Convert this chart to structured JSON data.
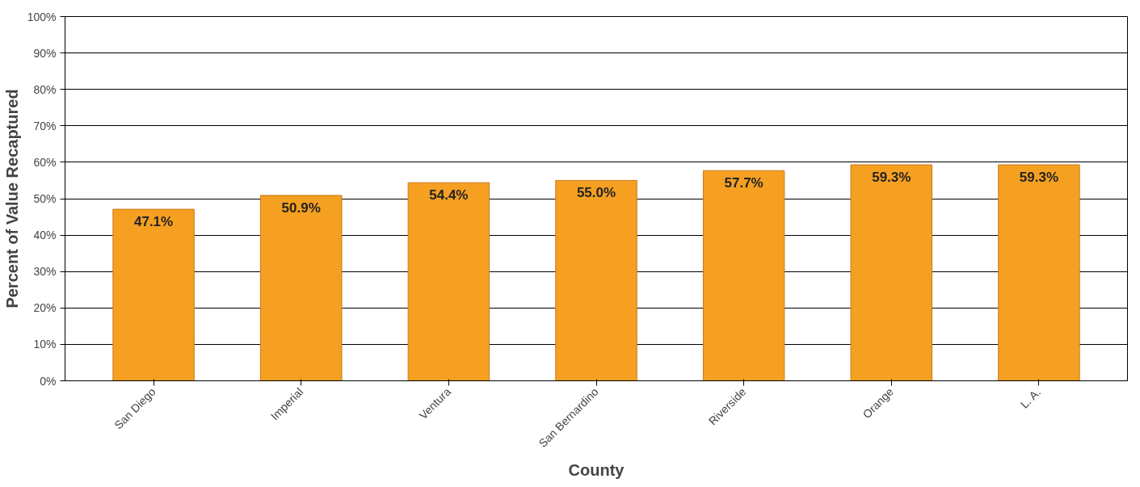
{
  "chart_data": {
    "type": "bar",
    "xlabel": "County",
    "ylabel": "Percent of Value Recaptured",
    "categories": [
      "San Diego",
      "Imperial",
      "Ventura",
      "San Bernardino",
      "Riverside",
      "Orange",
      "L. A."
    ],
    "values": [
      47.1,
      50.9,
      54.4,
      55.0,
      57.7,
      59.3,
      59.3
    ],
    "value_labels": [
      "47.1%",
      "50.9%",
      "54.4%",
      "55.0%",
      "57.7%",
      "59.3%",
      "59.3%"
    ],
    "color": "#f5a021",
    "ylim": [
      0,
      100
    ],
    "yticks": [
      {
        "value": 0,
        "label": "0%"
      },
      {
        "value": 10,
        "label": "10%"
      },
      {
        "value": 20,
        "label": "20%"
      },
      {
        "value": 30,
        "label": "30%"
      },
      {
        "value": 40,
        "label": "40%"
      },
      {
        "value": 50,
        "label": "50%"
      },
      {
        "value": 60,
        "label": "60%"
      },
      {
        "value": 70,
        "label": "70%"
      },
      {
        "value": 80,
        "label": "80%"
      },
      {
        "value": 90,
        "label": "90%"
      },
      {
        "value": 100,
        "label": "100%"
      }
    ],
    "grid": "y"
  }
}
